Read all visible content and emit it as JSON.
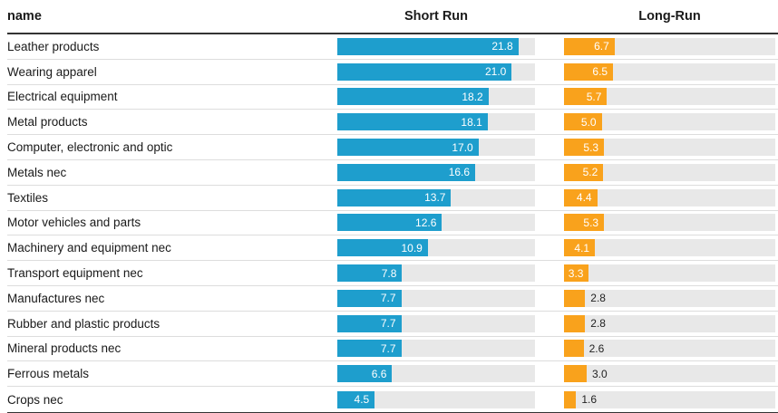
{
  "table": {
    "columns": {
      "name": "name",
      "short_run": "Short Run",
      "long_run": "Long-Run"
    }
  },
  "chart_data": {
    "type": "bar",
    "orientation": "horizontal",
    "title": "",
    "xlabel": "",
    "ylabel": "name",
    "grid": false,
    "legend_position": "column-headers",
    "track_color": "#e8e8e8",
    "categories": [
      "Leather products",
      "Wearing apparel",
      "Electrical equipment",
      "Metal products",
      "Computer, electronic and optic",
      "Metals nec",
      "Textiles",
      "Motor vehicles and parts",
      "Machinery and equipment nec",
      "Transport equipment nec",
      "Manufactures nec",
      "Rubber and plastic products",
      "Mineral products nec",
      "Ferrous metals",
      "Crops nec"
    ],
    "series": [
      {
        "name": "Short Run",
        "color": "#1e9ecd",
        "axis_max": 23.8,
        "track_width": 218,
        "values": [
          21.8,
          21.0,
          18.2,
          18.1,
          17.0,
          16.6,
          13.7,
          12.6,
          10.9,
          7.8,
          7.7,
          7.7,
          7.7,
          6.6,
          4.5
        ]
      },
      {
        "name": "Long-Run",
        "color": "#f9a21c",
        "axis_max": 28,
        "track_width": 233,
        "values": [
          6.7,
          6.5,
          5.7,
          5.0,
          5.3,
          5.2,
          4.4,
          5.3,
          4.1,
          3.3,
          2.8,
          2.8,
          2.6,
          3.0,
          1.6
        ]
      }
    ]
  }
}
